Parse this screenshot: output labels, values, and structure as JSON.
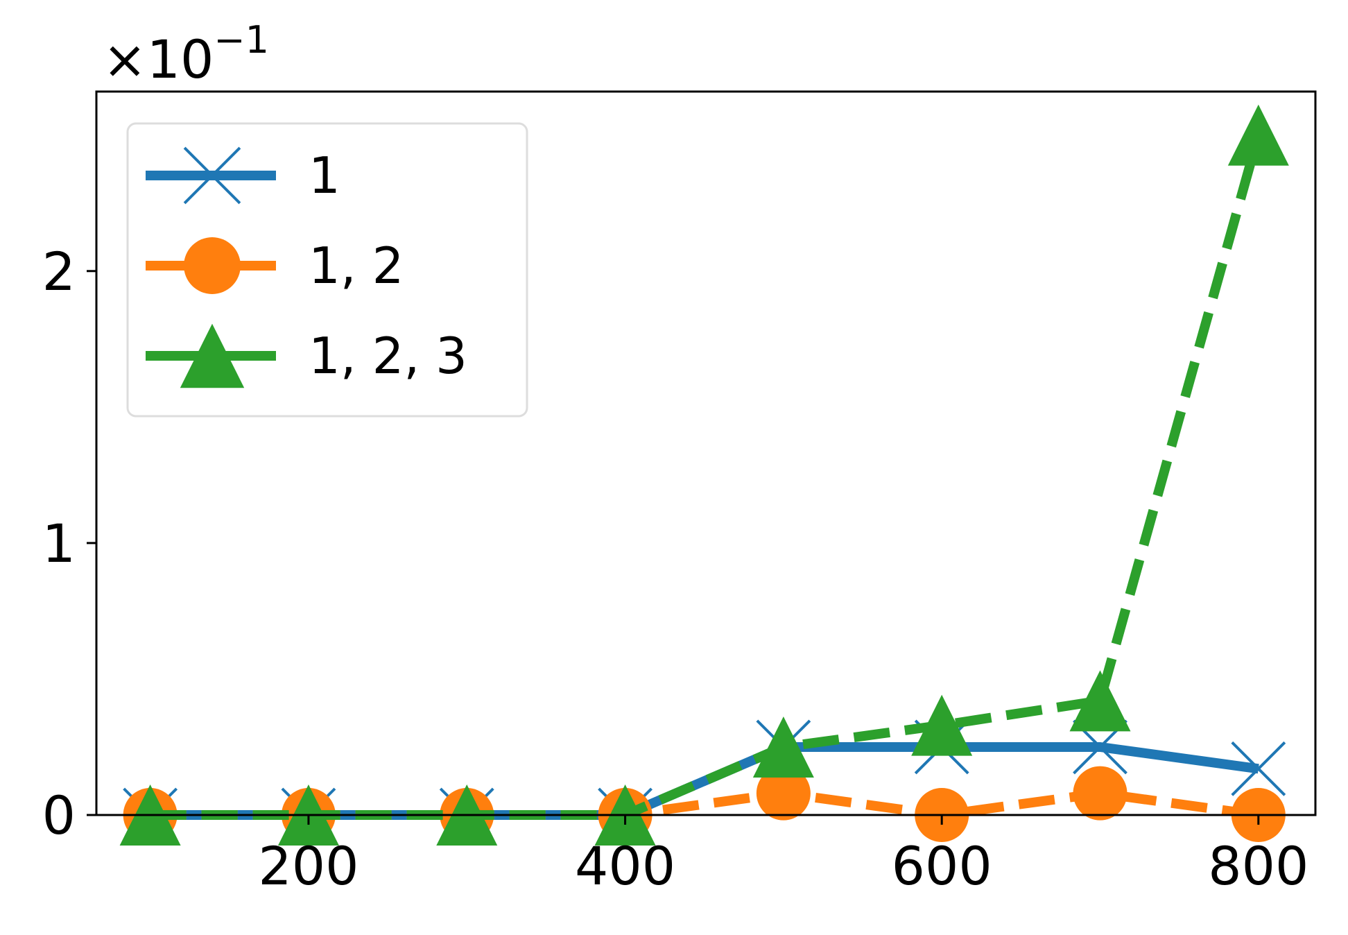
{
  "chart_data": {
    "type": "line",
    "x": [
      100,
      200,
      300,
      400,
      500,
      600,
      700,
      800
    ],
    "xticks": [
      200,
      400,
      600,
      800
    ],
    "xlim": [
      66,
      836
    ],
    "yticks": [
      0,
      1,
      2
    ],
    "ylim": [
      0,
      2.66
    ],
    "y_scale_label": {
      "base": "×10",
      "exponent": "−1"
    },
    "legend_position": "top-left",
    "series": [
      {
        "name": "1",
        "color": "#1f77b4",
        "linestyle": "solid",
        "marker": "x-icon",
        "values": [
          0,
          0,
          0,
          0,
          0.25,
          0.25,
          0.25,
          0.17
        ]
      },
      {
        "name": "1, 2",
        "color": "#ff7f0e",
        "linestyle": "dashed",
        "marker": "circle-icon",
        "values": [
          0,
          0,
          0,
          0,
          0.08,
          0,
          0.08,
          0
        ]
      },
      {
        "name": "1, 2, 3",
        "color": "#2ca02c",
        "linestyle": "dashed",
        "marker": "triangle-icon",
        "values": [
          0,
          0,
          0,
          0,
          0.25,
          0.33,
          0.42,
          2.5
        ]
      }
    ]
  }
}
